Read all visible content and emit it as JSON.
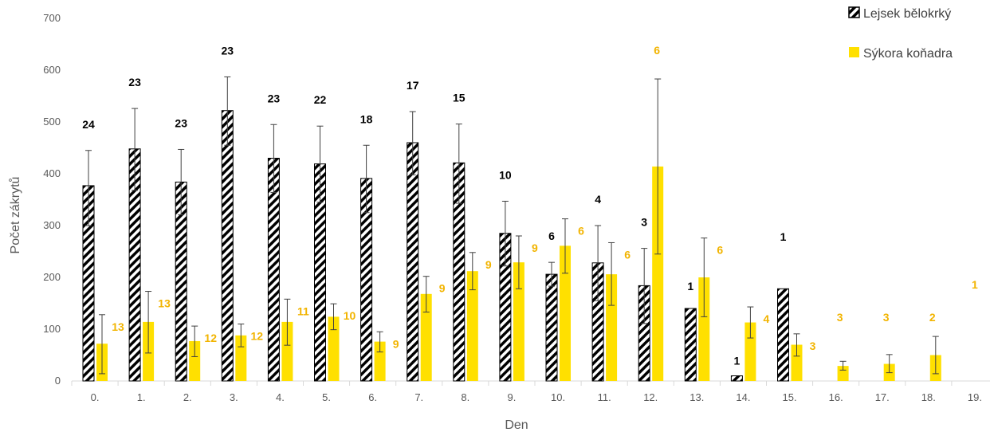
{
  "chart_data": {
    "type": "bar",
    "xlabel": "Den",
    "ylabel": "Počet zákrytů",
    "ylim": [
      0,
      700
    ],
    "yticks": [
      0,
      100,
      200,
      300,
      400,
      500,
      600,
      700
    ],
    "categories": [
      "0.",
      "1.",
      "2.",
      "3.",
      "4.",
      "5.",
      "6.",
      "7.",
      "8.",
      "9.",
      "10.",
      "11.",
      "12.",
      "13.",
      "14.",
      "15.",
      "16.",
      "17.",
      "18.",
      "19."
    ],
    "legend_position": "top-right",
    "grid": false,
    "series": [
      {
        "name": "Lejsek bělokrký",
        "pattern": "black-white diagonal hatch",
        "color": "#000000",
        "values": [
          377,
          448,
          384,
          522,
          430,
          419,
          391,
          460,
          421,
          285,
          206,
          228,
          184,
          140,
          10,
          178,
          null,
          null,
          null,
          null
        ],
        "error_low": [
          300,
          368,
          321,
          455,
          364,
          345,
          325,
          398,
          343,
          222,
          183,
          155,
          111,
          null,
          null,
          null,
          null,
          null,
          null,
          null
        ],
        "error_high": [
          445,
          526,
          447,
          587,
          495,
          492,
          455,
          520,
          496,
          347,
          229,
          300,
          256,
          null,
          null,
          null,
          null,
          null,
          null,
          null
        ],
        "labels": [
          "24",
          "23",
          "23",
          "23",
          "23",
          "22",
          "18",
          "17",
          "15",
          "10",
          "6",
          "4",
          "3",
          "1",
          "1",
          "1",
          "",
          "",
          "",
          ""
        ]
      },
      {
        "name": "Sýkora koňadra",
        "color": "#ffe000",
        "values": [
          72,
          114,
          77,
          88,
          114,
          124,
          76,
          168,
          212,
          229,
          261,
          206,
          414,
          200,
          113,
          70,
          29,
          33,
          50,
          null
        ],
        "error_low": [
          14,
          54,
          47,
          66,
          69,
          99,
          56,
          133,
          176,
          178,
          208,
          146,
          245,
          124,
          83,
          48,
          21,
          16,
          14,
          null
        ],
        "error_high": [
          128,
          173,
          106,
          110,
          158,
          149,
          95,
          202,
          248,
          280,
          313,
          267,
          583,
          276,
          143,
          91,
          38,
          51,
          86,
          null
        ],
        "labels": [
          "13",
          "13",
          "12",
          "12",
          "11",
          "10",
          "9",
          "9",
          "9",
          "9",
          "6",
          "6",
          "6",
          "6",
          "4",
          "3",
          "3",
          "3",
          "2",
          "1"
        ]
      }
    ]
  },
  "colors": {
    "axis": "#d9d9d9",
    "error_bar": "#404040",
    "label_series_a": "#000000",
    "label_series_b": "#f2b400"
  }
}
